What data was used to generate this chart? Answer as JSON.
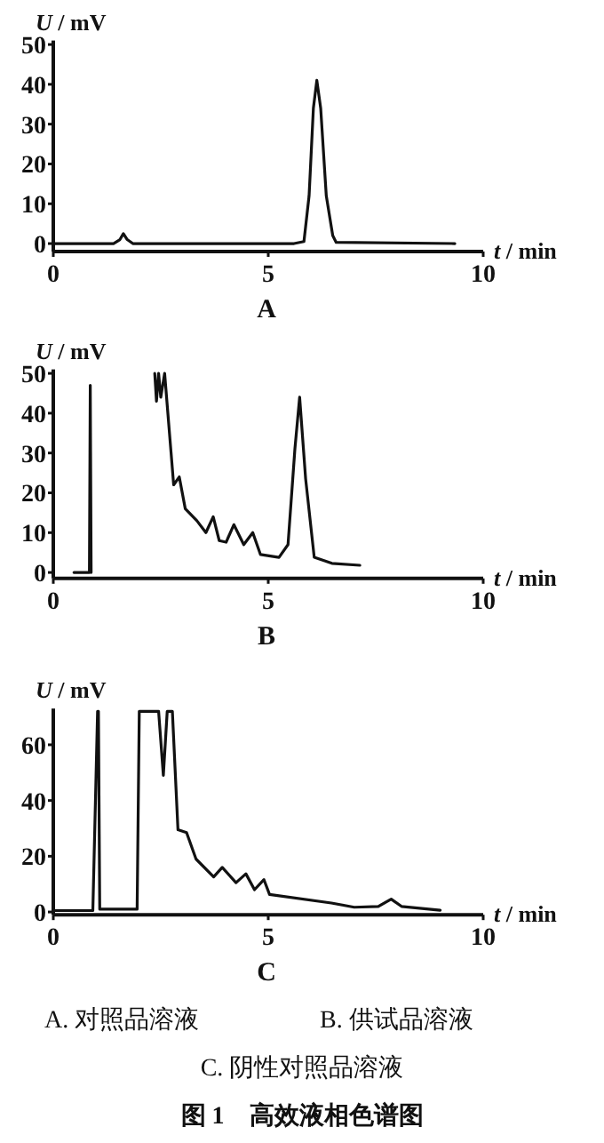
{
  "chart_data": [
    {
      "type": "line",
      "title": "A",
      "xlabel": "t / min",
      "ylabel": "U / mV",
      "xlim": [
        0,
        10
      ],
      "xticks": [
        0,
        5,
        10
      ],
      "ylim": [
        -2,
        51
      ],
      "yticks": [
        0,
        10,
        20,
        30,
        40,
        50
      ],
      "grid": false,
      "marker": "none",
      "line_style": "solid",
      "series": [
        {
          "color": "#111111",
          "x": [
            0,
            1.4,
            1.55,
            1.63,
            1.72,
            1.85,
            5.6,
            5.83,
            5.95,
            6.05,
            6.13,
            6.22,
            6.35,
            6.5,
            6.58,
            9.34
          ],
          "values": [
            0,
            0,
            1,
            2.5,
            1,
            0,
            0,
            0.5,
            12,
            34,
            41,
            34,
            12,
            2,
            0.3,
            0
          ]
        }
      ]
    },
    {
      "type": "line",
      "title": "B",
      "xlabel": "t / min",
      "ylabel": "U / mV",
      "xlim": [
        0,
        10
      ],
      "xticks": [
        0,
        5,
        10
      ],
      "ylim": [
        -1.5,
        51
      ],
      "yticks": [
        0,
        10,
        20,
        30,
        40,
        50
      ],
      "grid": false,
      "marker": "none",
      "line_style": "solid",
      "series": [
        {
          "color": "#111111",
          "x": [
            0.48,
            0.84,
            0.86,
            0.88
          ],
          "values": [
            0,
            0,
            47,
            0
          ]
        },
        {
          "color": "#111111",
          "x": [
            2.36,
            2.4,
            2.45,
            2.5,
            2.59,
            2.8,
            2.93,
            3.07,
            3.34,
            3.55,
            3.72,
            3.86,
            4.02,
            4.2,
            4.43,
            4.64,
            4.82,
            5.25,
            5.46,
            5.62,
            5.73,
            5.87,
            6.07,
            6.48,
            7.13
          ],
          "values": [
            50,
            43,
            50,
            44,
            50,
            22,
            24,
            16,
            13,
            10,
            14,
            8,
            7.6,
            12,
            7,
            10,
            4.5,
            3.8,
            7,
            31,
            44,
            23.5,
            3.8,
            2.3,
            1.8
          ]
        }
      ]
    },
    {
      "type": "line",
      "title": "C",
      "xlabel": "t / min",
      "ylabel": "U / mV",
      "xlim": [
        0,
        10
      ],
      "xticks": [
        0,
        5,
        10
      ],
      "ylim": [
        -1,
        73
      ],
      "yticks": [
        0,
        20,
        40,
        60
      ],
      "grid": false,
      "marker": "none",
      "line_style": "solid",
      "annotations": [
        "A. 对照品溶液",
        "B. 供试品溶液",
        "C. 阴性对照品溶液",
        "图 1　高效液相色谱图"
      ],
      "series": [
        {
          "color": "#111111",
          "x": [
            0,
            0.92,
            1.03,
            1.05,
            1.08,
            1.95,
            2.0,
            2.1,
            2.45,
            2.56,
            2.65,
            2.77,
            2.9,
            3.1,
            3.32,
            3.73,
            3.93,
            4.25,
            4.48,
            4.68,
            4.9,
            5.03,
            6.47,
            7.0,
            7.56,
            7.86,
            8.1,
            9.0
          ],
          "values": [
            0.5,
            0.5,
            72,
            72,
            1,
            1,
            72,
            72,
            72,
            49,
            72,
            72,
            29.5,
            28.5,
            19,
            12.6,
            16,
            10.5,
            13.7,
            8,
            11.6,
            6.3,
            3.2,
            1.7,
            2,
            4.6,
            2,
            0.6
          ]
        }
      ]
    }
  ]
}
